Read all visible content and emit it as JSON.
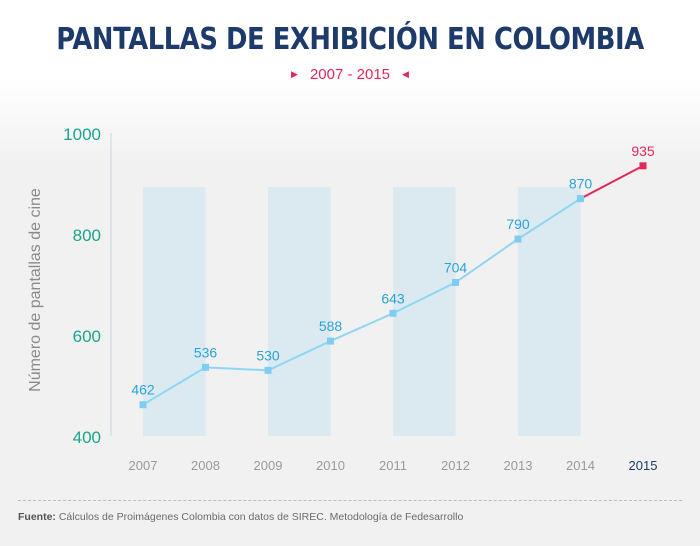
{
  "title": "PANTALLAS DE EXHIBICIÓN EN COLOMBIA",
  "subtitle": "2007 - 2015",
  "footer": {
    "label": "Fuente:",
    "text": "Cálculos de Proimágenes Colombia con datos de SIREC. Metodología de Fedesarrollo"
  },
  "colors": {
    "line": "#8fd6f5",
    "marker": "#7fcdf0",
    "highlight": "#e2285a",
    "label": "#2aa3d9",
    "ytick": "#1aa58a",
    "band": "#dbe9f1"
  },
  "chart_data": {
    "type": "line",
    "ylabel": "Número de pantallas de cine",
    "ylim": [
      400,
      1000
    ],
    "yticks": [
      400,
      600,
      800,
      1000
    ],
    "categories": [
      "2007",
      "2008",
      "2009",
      "2010",
      "2011",
      "2012",
      "2013",
      "2014",
      "2015"
    ],
    "values": [
      462,
      536,
      530,
      588,
      643,
      704,
      790,
      870,
      935
    ],
    "labels": [
      "462",
      "536",
      "530",
      "588",
      "643",
      "704",
      "790",
      "870",
      "935"
    ],
    "highlight_index": 8
  }
}
